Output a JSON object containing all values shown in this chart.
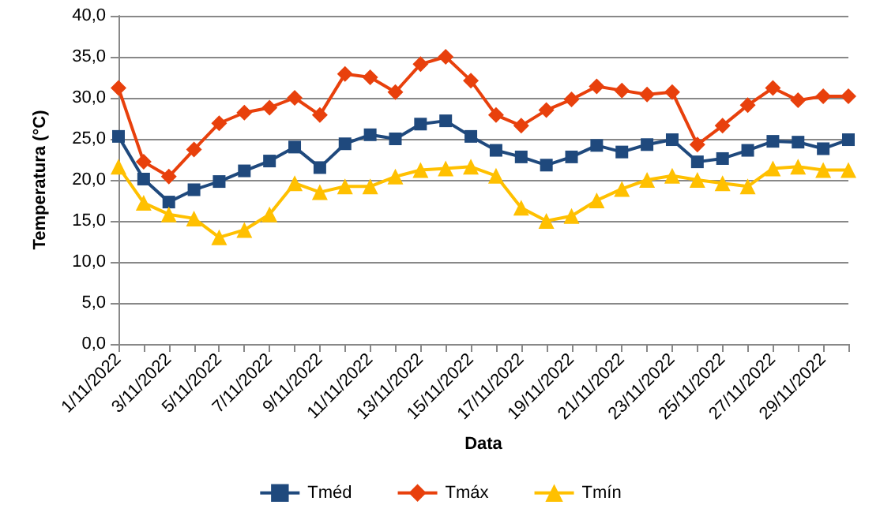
{
  "chart_data": {
    "type": "line",
    "xlabel": "Data",
    "ylabel": "Temperatura (°C)",
    "categories": [
      "1/11/2022",
      null,
      "3/11/2022",
      null,
      "5/11/2022",
      null,
      "7/11/2022",
      null,
      "9/11/2022",
      null,
      "11/11/2022",
      null,
      "13/11/2022",
      null,
      "15/11/2022",
      null,
      "17/11/2022",
      null,
      "19/11/2022",
      null,
      "21/11/2022",
      null,
      "23/11/2022",
      null,
      "25/11/2022",
      null,
      "27/11/2022",
      null,
      "29/11/2022",
      null
    ],
    "series": [
      {
        "name": "Tméd",
        "color": "#1f497d",
        "marker": "square",
        "values": [
          25.3,
          20.1,
          17.3,
          18.8,
          19.8,
          21.1,
          22.3,
          24.0,
          21.5,
          24.4,
          25.5,
          25.0,
          26.8,
          27.2,
          25.3,
          23.6,
          22.8,
          21.8,
          22.8,
          24.2,
          23.4,
          24.3,
          24.9,
          22.2,
          22.6,
          23.6,
          24.7,
          24.6,
          23.8,
          24.9
        ]
      },
      {
        "name": "Tmáx",
        "color": "#e8400c",
        "marker": "diamond",
        "values": [
          31.2,
          22.2,
          20.4,
          23.7,
          26.9,
          28.2,
          28.8,
          30.0,
          27.9,
          32.9,
          32.5,
          30.7,
          34.1,
          35.0,
          32.1,
          27.9,
          26.6,
          28.5,
          29.8,
          31.4,
          30.9,
          30.4,
          30.7,
          24.3,
          26.6,
          29.1,
          31.2,
          29.7,
          30.2,
          30.2
        ]
      },
      {
        "name": "Tmín",
        "color": "#ffc000",
        "marker": "triangle",
        "values": [
          21.6,
          17.2,
          15.8,
          15.3,
          13.0,
          13.9,
          15.8,
          19.6,
          18.5,
          19.2,
          19.2,
          20.4,
          21.2,
          21.4,
          21.6,
          20.5,
          16.6,
          15.0,
          15.6,
          17.5,
          18.9,
          20.0,
          20.5,
          20.0,
          19.6,
          19.2,
          21.4,
          21.6,
          21.2,
          21.2
        ]
      }
    ],
    "ylim": [
      0,
      40
    ],
    "yticks": [
      {
        "value": 0,
        "label": "0,0"
      },
      {
        "value": 5,
        "label": "5,0"
      },
      {
        "value": 10,
        "label": "10,0"
      },
      {
        "value": 15,
        "label": "15,0"
      },
      {
        "value": 20,
        "label": "20,0"
      },
      {
        "value": 25,
        "label": "25,0"
      },
      {
        "value": 30,
        "label": "30,0"
      },
      {
        "value": 35,
        "label": "35,0"
      },
      {
        "value": 40,
        "label": "40,0"
      }
    ],
    "grid": "y",
    "legend": "bottom"
  }
}
